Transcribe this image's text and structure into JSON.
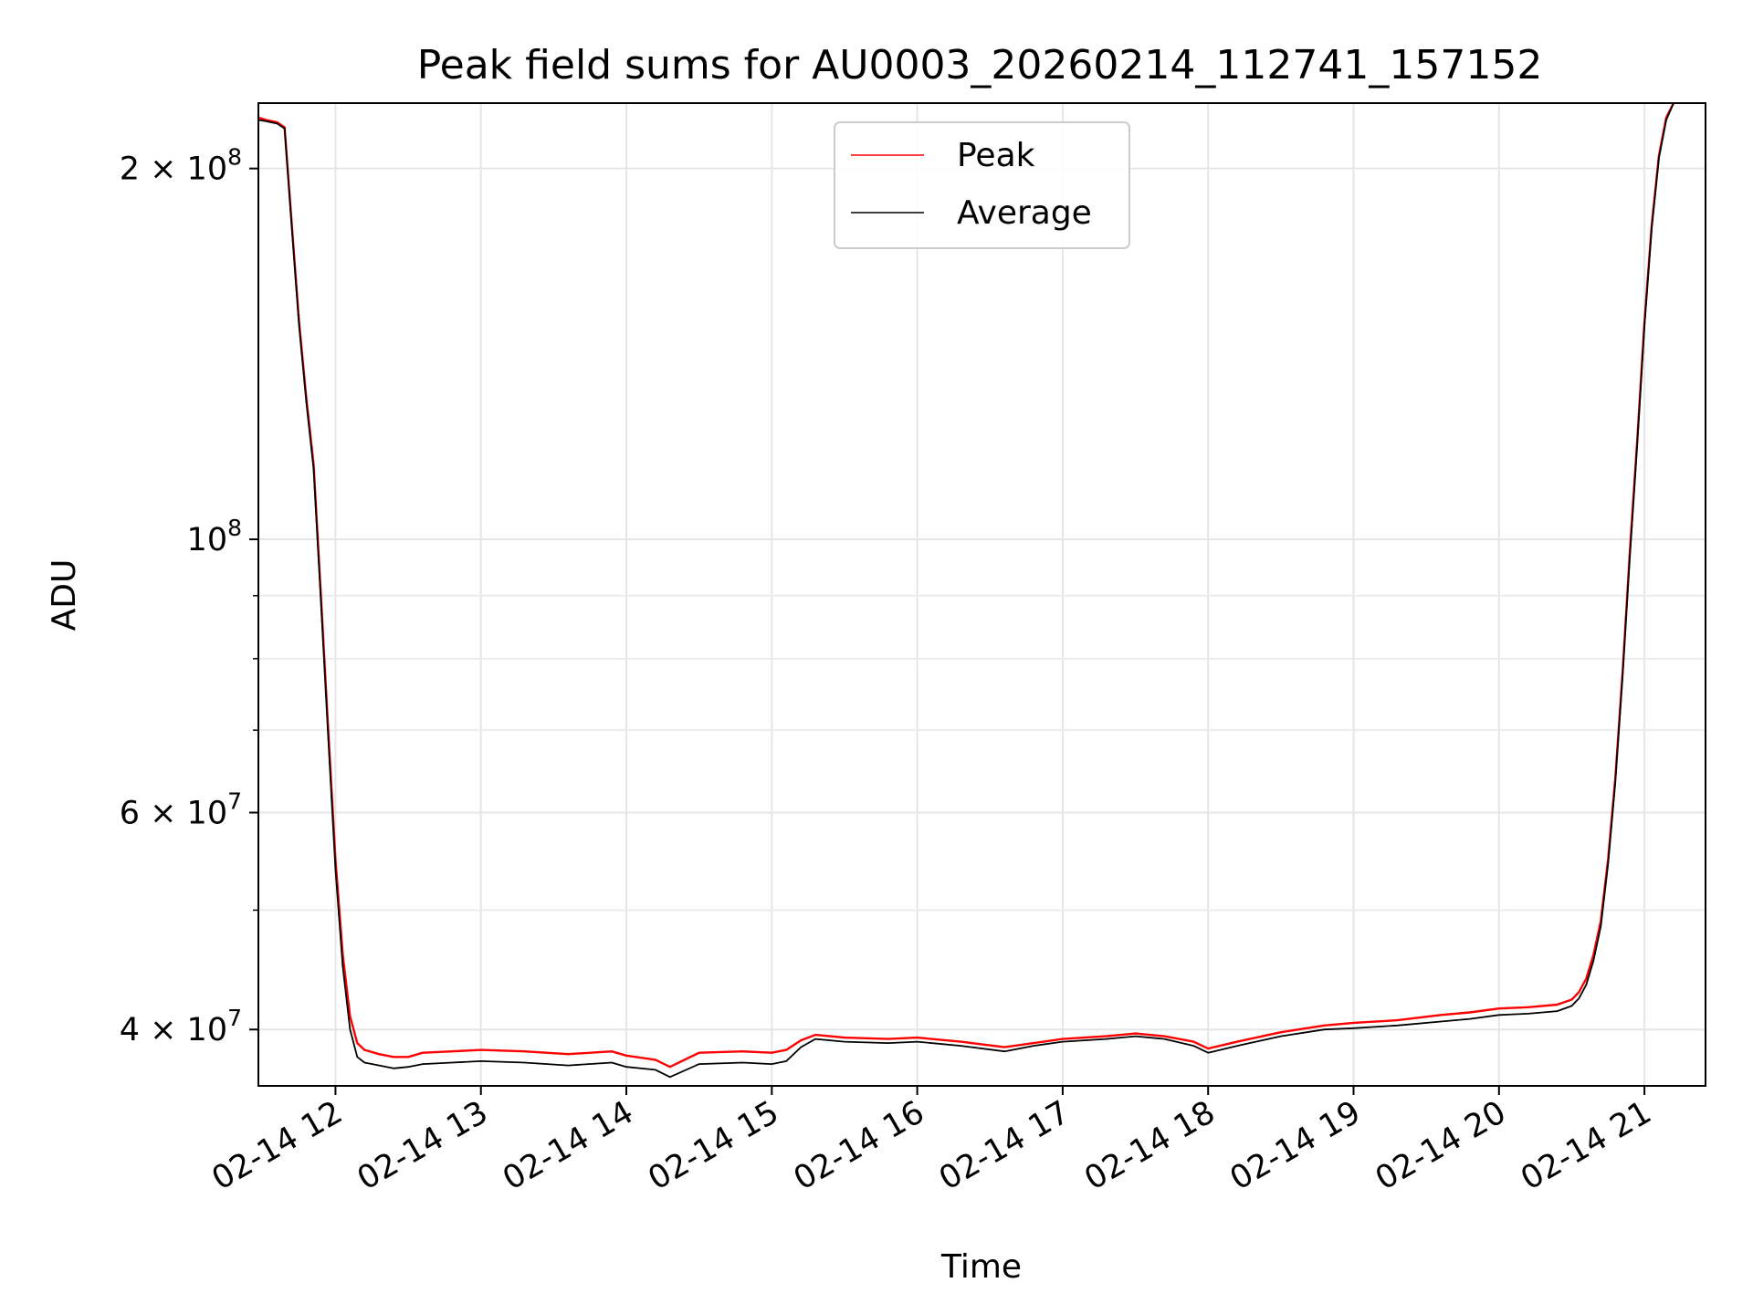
{
  "chart_data": {
    "type": "line",
    "title": "Peak field sums for AU0003_20260214_112741_157152",
    "xlabel": "Time",
    "ylabel": "ADU",
    "yscale": "log",
    "xlim_hours": [
      11.47,
      21.42
    ],
    "ylim": [
      36000000,
      226000000
    ],
    "grid": true,
    "legend_position": "top-center",
    "x_tick_labels": [
      "02-14 12",
      "02-14 13",
      "02-14 14",
      "02-14 15",
      "02-14 16",
      "02-14 17",
      "02-14 18",
      "02-14 19",
      "02-14 20",
      "02-14 21"
    ],
    "x_tick_hours": [
      12,
      13,
      14,
      15,
      16,
      17,
      18,
      19,
      20,
      21
    ],
    "y_tick_values": [
      40000000,
      60000000,
      100000000,
      200000000
    ],
    "y_tick_labels": [
      {
        "base": "4 × 10",
        "exp": "7"
      },
      {
        "base": "6 × 10",
        "exp": "7"
      },
      {
        "base": "10",
        "exp": "8"
      },
      {
        "base": "2 × 10",
        "exp": "8"
      }
    ],
    "y_minor_tick_values": [
      50000000,
      70000000,
      80000000,
      90000000
    ],
    "series": [
      {
        "name": "Peak",
        "color": "#ff0000",
        "x_hours": [
          11.47,
          11.52,
          11.6,
          11.65,
          11.7,
          11.75,
          11.8,
          11.85,
          11.9,
          11.95,
          12.0,
          12.05,
          12.1,
          12.15,
          12.2,
          12.3,
          12.4,
          12.5,
          12.6,
          12.8,
          13.0,
          13.3,
          13.6,
          13.9,
          14.0,
          14.2,
          14.3,
          14.5,
          14.8,
          15.0,
          15.1,
          15.2,
          15.3,
          15.5,
          15.8,
          16.0,
          16.3,
          16.6,
          16.8,
          17.0,
          17.3,
          17.5,
          17.7,
          17.9,
          18.0,
          18.2,
          18.5,
          18.8,
          19.0,
          19.3,
          19.6,
          19.8,
          20.0,
          20.2,
          20.4,
          20.5,
          20.55,
          20.6,
          20.65,
          20.7,
          20.75,
          20.8,
          20.85,
          20.9,
          20.95,
          21.0,
          21.05,
          21.1,
          21.15,
          21.2
        ],
        "values": [
          220000000,
          219000000,
          218000000,
          216000000,
          180000000,
          150000000,
          130000000,
          115000000,
          90000000,
          70000000,
          55000000,
          46000000,
          41000000,
          39000000,
          38500000,
          38200000,
          38000000,
          38000000,
          38300000,
          38400000,
          38500000,
          38400000,
          38200000,
          38400000,
          38100000,
          37800000,
          37300000,
          38300000,
          38400000,
          38300000,
          38500000,
          39200000,
          39600000,
          39400000,
          39300000,
          39400000,
          39100000,
          38700000,
          39000000,
          39300000,
          39500000,
          39700000,
          39500000,
          39100000,
          38600000,
          39100000,
          39800000,
          40300000,
          40500000,
          40700000,
          41100000,
          41300000,
          41600000,
          41700000,
          41900000,
          42300000,
          42900000,
          44000000,
          46000000,
          49000000,
          55000000,
          64000000,
          78000000,
          98000000,
          120000000,
          150000000,
          180000000,
          205000000,
          220000000,
          226000000
        ]
      },
      {
        "name": "Average",
        "color": "#000000",
        "x_hours": [
          11.47,
          11.52,
          11.6,
          11.65,
          11.7,
          11.75,
          11.8,
          11.85,
          11.9,
          11.95,
          12.0,
          12.05,
          12.1,
          12.15,
          12.2,
          12.3,
          12.4,
          12.5,
          12.6,
          12.8,
          13.0,
          13.3,
          13.6,
          13.9,
          14.0,
          14.2,
          14.3,
          14.5,
          14.8,
          15.0,
          15.1,
          15.2,
          15.3,
          15.5,
          15.8,
          16.0,
          16.3,
          16.6,
          16.8,
          17.0,
          17.3,
          17.5,
          17.7,
          17.9,
          18.0,
          18.2,
          18.5,
          18.8,
          19.0,
          19.3,
          19.6,
          19.8,
          20.0,
          20.2,
          20.4,
          20.5,
          20.55,
          20.6,
          20.65,
          20.7,
          20.75,
          20.8,
          20.85,
          20.9,
          20.95,
          21.0,
          21.05,
          21.1,
          21.15,
          21.2
        ],
        "values": [
          219000000,
          218500000,
          217500000,
          215500000,
          179000000,
          149000000,
          129000000,
          114000000,
          89000000,
          69000000,
          54000000,
          45000000,
          40000000,
          38000000,
          37600000,
          37400000,
          37200000,
          37300000,
          37500000,
          37600000,
          37700000,
          37600000,
          37400000,
          37600000,
          37300000,
          37100000,
          36600000,
          37500000,
          37600000,
          37500000,
          37700000,
          38700000,
          39300000,
          39100000,
          39000000,
          39100000,
          38800000,
          38400000,
          38800000,
          39100000,
          39300000,
          39500000,
          39300000,
          38800000,
          38300000,
          38800000,
          39500000,
          40000000,
          40100000,
          40300000,
          40600000,
          40800000,
          41100000,
          41200000,
          41400000,
          41800000,
          42400000,
          43500000,
          45500000,
          48500000,
          54500000,
          63500000,
          77500000,
          97000000,
          119000000,
          149000000,
          179000000,
          204000000,
          219000000,
          226000000
        ]
      }
    ]
  }
}
